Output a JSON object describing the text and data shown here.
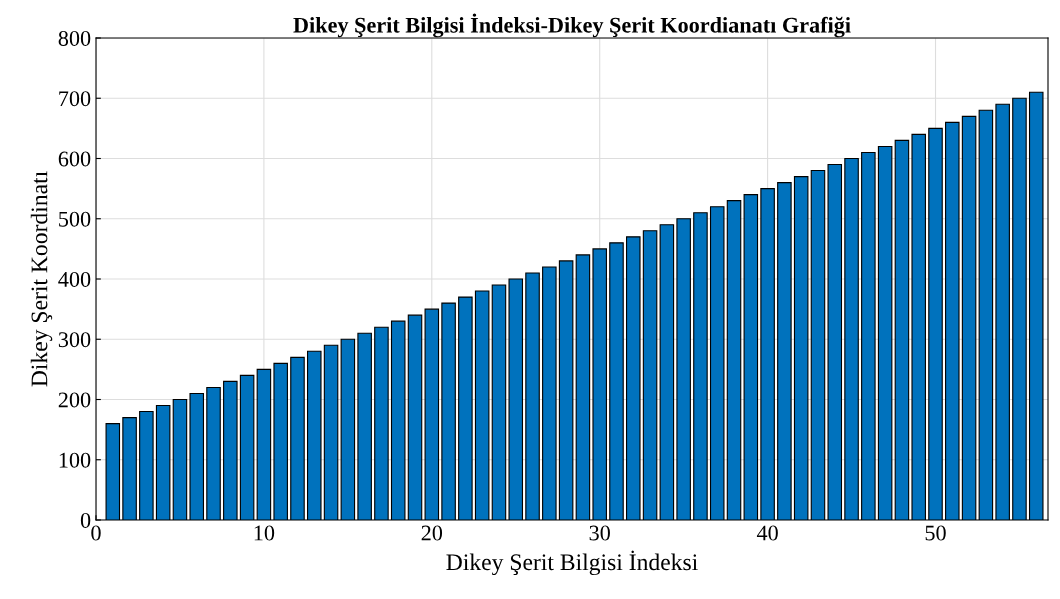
{
  "chart_data": {
    "type": "bar",
    "title": "Dikey Şerit Bilgisi İndeksi-Dikey Şerit Koordianatı Grafiği",
    "xlabel": "Dikey Şerit Bilgisi İndeksi",
    "ylabel": "Dikey Şerit Koordinatı",
    "x": [
      1,
      2,
      3,
      4,
      5,
      6,
      7,
      8,
      9,
      10,
      11,
      12,
      13,
      14,
      15,
      16,
      17,
      18,
      19,
      20,
      21,
      22,
      23,
      24,
      25,
      26,
      27,
      28,
      29,
      30,
      31,
      32,
      33,
      34,
      35,
      36,
      37,
      38,
      39,
      40,
      41,
      42,
      43,
      44,
      45,
      46,
      47,
      48,
      49,
      50,
      51,
      52,
      53,
      54,
      55,
      56
    ],
    "values": [
      160,
      170,
      180,
      190,
      200,
      210,
      220,
      230,
      240,
      250,
      260,
      270,
      280,
      290,
      300,
      310,
      320,
      330,
      340,
      350,
      360,
      370,
      380,
      390,
      400,
      410,
      420,
      430,
      440,
      450,
      460,
      470,
      480,
      490,
      500,
      510,
      520,
      530,
      540,
      550,
      560,
      570,
      580,
      590,
      600,
      610,
      620,
      630,
      640,
      650,
      660,
      670,
      680,
      690,
      700,
      710
    ],
    "color": "#0072bd",
    "xlim": [
      0,
      56.7
    ],
    "xticks": [
      0,
      10,
      20,
      30,
      40,
      50
    ],
    "ylim": [
      0,
      800
    ],
    "yticks": [
      0,
      100,
      200,
      300,
      400,
      500,
      600,
      700,
      800
    ],
    "grid": true
  }
}
